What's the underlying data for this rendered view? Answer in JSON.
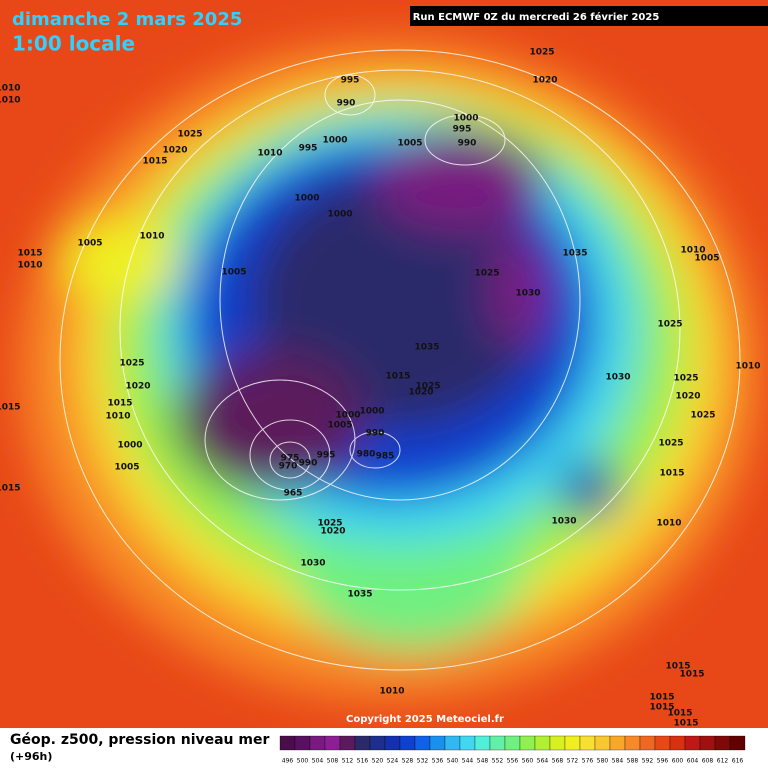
{
  "header": {
    "title": "dimanche 2 mars 2025",
    "subtitle": "1:00 locale",
    "run": "Run ECMWF 0Z du mercredi 26 février 2025"
  },
  "footer": {
    "copyright": "Copyright 2025 Meteociel.fr"
  },
  "legend": {
    "title": "Géop. z500, pression niveau mer",
    "subtitle": "(+96h)",
    "levels": [
      496,
      500,
      504,
      508,
      512,
      516,
      520,
      524,
      528,
      532,
      536,
      540,
      544,
      548,
      552,
      556,
      560,
      564,
      568,
      572,
      576,
      580,
      584,
      588,
      592,
      596,
      600,
      604,
      608,
      612,
      616
    ],
    "colors": [
      "#4a0c4a",
      "#5a1060",
      "#781a80",
      "#8c1f94",
      "#5c1a5c",
      "#2a2a6a",
      "#1e2e8c",
      "#1430b0",
      "#1040d0",
      "#1060e8",
      "#1890f0",
      "#30b8f0",
      "#40d8f0",
      "#50f0d8",
      "#60f0a8",
      "#70f080",
      "#90f050",
      "#b0f030",
      "#d8f020",
      "#f0f020",
      "#f8e030",
      "#f8c830",
      "#f8a828",
      "#f88828",
      "#f06820",
      "#e84818",
      "#d83010",
      "#c01818",
      "#a01010",
      "#800808",
      "#600000"
    ]
  },
  "map": {
    "isobar_labels": [
      995,
      990,
      1025,
      1020,
      1010,
      1010,
      1025,
      1020,
      1015,
      1010,
      995,
      1000,
      1005,
      1000,
      995,
      990,
      1000,
      1000,
      1005,
      1010,
      1015,
      1010,
      1005,
      1025,
      1035,
      1030,
      1010,
      1005,
      1025,
      1035,
      1025,
      1020,
      1015,
      1025,
      1020,
      1030,
      1025,
      1010,
      1020,
      1025,
      1015,
      1010,
      1015,
      1000,
      1000,
      1005,
      990,
      1000,
      980,
      985,
      995,
      990,
      975,
      970,
      965,
      1025,
      1015,
      1005,
      1015,
      1030,
      1010,
      1025,
      1020,
      1030,
      1035,
      1010,
      1015,
      1015,
      1015,
      1015,
      1015,
      1015
    ]
  }
}
